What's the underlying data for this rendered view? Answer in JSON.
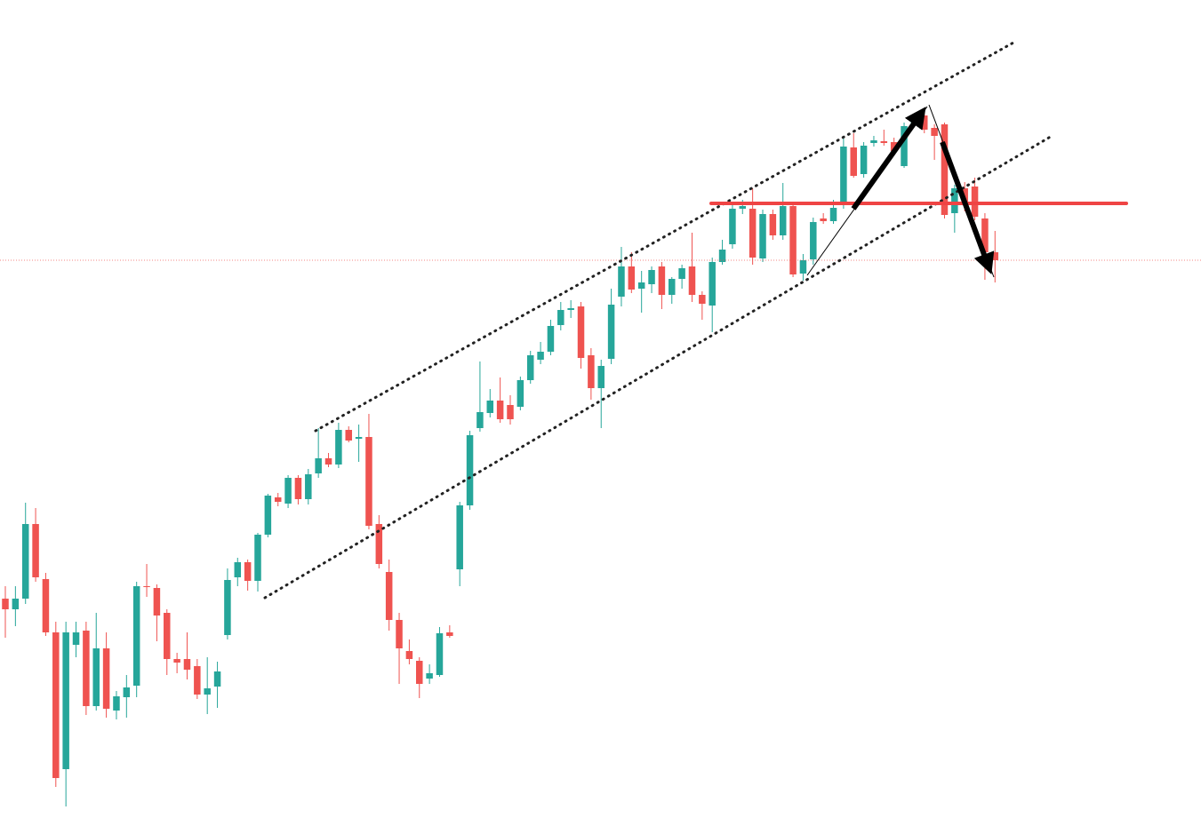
{
  "chart_data": {
    "type": "candlestick",
    "ylim": [
      0,
      930
    ],
    "up_color": "#26a69a",
    "down_color": "#ef5350",
    "open": [
      256,
      244,
      256,
      340,
      278,
      218,
      64,
      204,
      220,
      135,
      200,
      130,
      145,
      158,
      270,
      268,
      240,
      188,
      188,
      180,
      148,
      157,
      215,
      280,
      297,
      276,
      328,
      370,
      363,
      392,
      368,
      397,
      414,
      407,
      446,
      436,
      438,
      340,
      286,
      232,
      197,
      186,
      166,
      170,
      218,
      289,
      361,
      448,
      465,
      479,
      474,
      472,
      502,
      525,
      534,
      564,
      581,
      585,
      530,
      493,
      526,
      596,
      630,
      605,
      610,
      630,
      598,
      616,
      630,
      598,
      586,
      635,
      655,
      695,
      695,
      639,
      689,
      665,
      698,
      622,
      638,
      684,
      681,
      700,
      764,
      734,
      769,
      771,
      770,
      743,
      790,
      800,
      786,
      790,
      690,
      718,
      720,
      684,
      646
    ],
    "high": [
      270,
      270,
      364,
      358,
      285,
      230,
      230,
      230,
      230,
      240,
      218,
      152,
      170,
      275,
      295,
      272,
      244,
      195,
      218,
      188,
      190,
      185,
      290,
      302,
      300,
      330,
      374,
      375,
      395,
      395,
      402,
      448,
      420,
      454,
      450,
      452,
      464,
      350,
      300,
      240,
      210,
      190,
      182,
      224,
      226,
      365,
      445,
      523,
      492,
      505,
      485,
      506,
      535,
      545,
      570,
      590,
      592,
      590,
      538,
      525,
      605,
      652,
      646,
      625,
      630,
      635,
      618,
      632,
      668,
      602,
      640,
      660,
      700,
      705,
      718,
      694,
      694,
      724,
      702,
      644,
      685,
      690,
      705,
      775,
      780,
      770,
      777,
      784,
      775,
      792,
      802,
      808,
      790,
      792,
      722,
      725,
      730,
      690,
      670
    ],
    "low": [
      212,
      225,
      250,
      275,
      214,
      44,
      22,
      190,
      125,
      130,
      122,
      120,
      122,
      145,
      258,
      208,
      170,
      172,
      165,
      143,
      126,
      133,
      210,
      270,
      265,
      264,
      325,
      360,
      358,
      362,
      362,
      392,
      404,
      403,
      432,
      410,
      334,
      290,
      220,
      160,
      182,
      144,
      160,
      168,
      212,
      270,
      356,
      444,
      460,
      454,
      452,
      468,
      498,
      520,
      530,
      558,
      572,
      515,
      480,
      448,
      520,
      585,
      600,
      578,
      600,
      582,
      588,
      605,
      590,
      570,
      556,
      632,
      650,
      689,
      632,
      635,
      660,
      660,
      618,
      614,
      632,
      678,
      678,
      695,
      730,
      730,
      765,
      766,
      755,
      741,
      788,
      780,
      750,
      684,
      668,
      692,
      682,
      615,
      612
    ],
    "close": [
      244,
      256,
      340,
      280,
      218,
      54,
      218,
      218,
      135,
      200,
      132,
      146,
      156,
      270,
      269,
      237,
      188,
      184,
      176,
      148,
      155,
      174,
      277,
      297,
      276,
      328,
      372,
      365,
      392,
      368,
      396,
      414,
      407,
      446,
      434,
      438,
      338,
      295,
      232,
      200,
      188,
      160,
      172,
      217,
      214,
      361,
      440,
      466,
      479,
      458,
      458,
      502,
      530,
      534,
      563,
      581,
      583,
      527,
      493,
      518,
      587,
      630,
      604,
      612,
      626,
      598,
      616,
      628,
      598,
      588,
      635,
      649,
      695,
      698,
      640,
      689,
      665,
      698,
      621,
      637,
      680,
      681,
      696,
      765,
      732,
      766,
      772,
      769,
      760,
      788,
      798,
      784,
      777,
      688,
      718,
      700,
      686,
      646,
      637
    ]
  }
}
